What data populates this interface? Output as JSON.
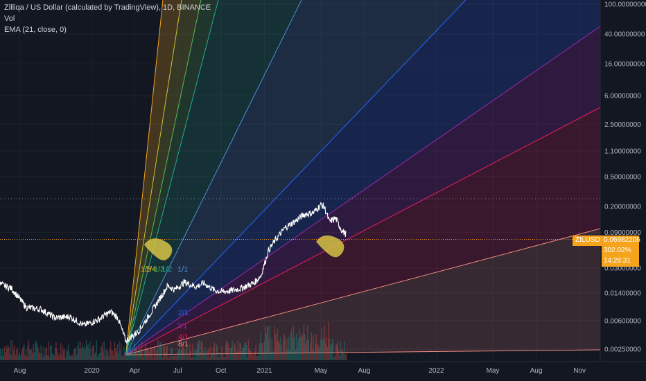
{
  "legend": {
    "title": "Zilliqa / US Dollar (calculated by TradingView), 1D, BINANCE",
    "vol": "Vol",
    "ema": "EMA (21, close, 0)"
  },
  "price_tag": {
    "symbol": "ZILUSD",
    "price": "0.06982206",
    "change": "302.02%",
    "countdown": "14:28:31",
    "color": "#f7a41d"
  },
  "chart_data": {
    "type": "line",
    "symbol": "ZILUSD",
    "y_scale": "log",
    "y_ticks": [
      "100.00000000",
      "40.00000000",
      "16.00000000",
      "6.00000000",
      "2.50000000",
      "1.10000000",
      "0.50000000",
      "0.20000000",
      "0.09000000",
      "0.03000000",
      "0.01400000",
      "0.00600000",
      "0.00250000"
    ],
    "y_tick_values": [
      100,
      40,
      16,
      6,
      2.5,
      1.1,
      0.5,
      0.2,
      0.09,
      0.03,
      0.014,
      0.006,
      0.0025
    ],
    "x_ticks": [
      "Aug",
      "2020",
      "Apr",
      "Jul",
      "Oct",
      "2021",
      "May",
      "Aug",
      "2022",
      "May",
      "Aug",
      "Nov"
    ],
    "x_tick_dates": [
      "2019-08-01",
      "2020-01-01",
      "2020-04-01",
      "2020-07-01",
      "2020-10-01",
      "2021-01-01",
      "2021-05-01",
      "2021-08-01",
      "2022-01-01",
      "2022-05-01",
      "2022-08-01",
      "2022-11-01"
    ],
    "price_series": {
      "dates": [
        "2019-06-20",
        "2019-07-15",
        "2019-08-15",
        "2019-09-15",
        "2019-10-15",
        "2019-11-15",
        "2019-12-15",
        "2020-01-15",
        "2020-02-10",
        "2020-02-25",
        "2020-03-13",
        "2020-04-10",
        "2020-05-10",
        "2020-06-10",
        "2020-06-25",
        "2020-07-15",
        "2020-08-10",
        "2020-08-25",
        "2020-09-15",
        "2020-10-01",
        "2020-10-20",
        "2020-11-10",
        "2020-11-25",
        "2020-12-10",
        "2020-12-25",
        "2021-01-10",
        "2021-01-25",
        "2021-02-15",
        "2021-03-10",
        "2021-03-25",
        "2021-04-15",
        "2021-05-01",
        "2021-05-08",
        "2021-05-19",
        "2021-06-01",
        "2021-06-15",
        "2021-06-24"
      ],
      "values": [
        0.0185,
        0.016,
        0.009,
        0.0085,
        0.0065,
        0.0068,
        0.0052,
        0.0062,
        0.0079,
        0.0066,
        0.0032,
        0.0044,
        0.0085,
        0.0175,
        0.0155,
        0.0195,
        0.017,
        0.019,
        0.0155,
        0.0145,
        0.015,
        0.016,
        0.0175,
        0.019,
        0.024,
        0.052,
        0.072,
        0.105,
        0.13,
        0.155,
        0.165,
        0.21,
        0.2,
        0.125,
        0.14,
        0.095,
        0.085
      ]
    },
    "volume_level": "low",
    "gann_fan": {
      "anchor_date": "2020-03-13",
      "anchor_price": 0.0021,
      "labels": [
        "1/8",
        "1/4",
        "1/3",
        "1/2",
        "1/1",
        "2/1",
        "3/1",
        "4/1",
        "8/1"
      ],
      "colors": [
        "#f7a41d",
        "#c8c436",
        "#59b855",
        "#22ab94",
        "#4f8fd9",
        "#2962ff",
        "#9c27b0",
        "#e91e63",
        "#f28b82"
      ]
    },
    "annotations": [
      {
        "type": "highlight",
        "date": "2020-06-01",
        "price": 0.05,
        "color": "#d6c345"
      },
      {
        "type": "highlight",
        "date": "2021-06-01",
        "price": 0.055,
        "color": "#d6c345"
      }
    ],
    "current_price": 0.06982206
  }
}
